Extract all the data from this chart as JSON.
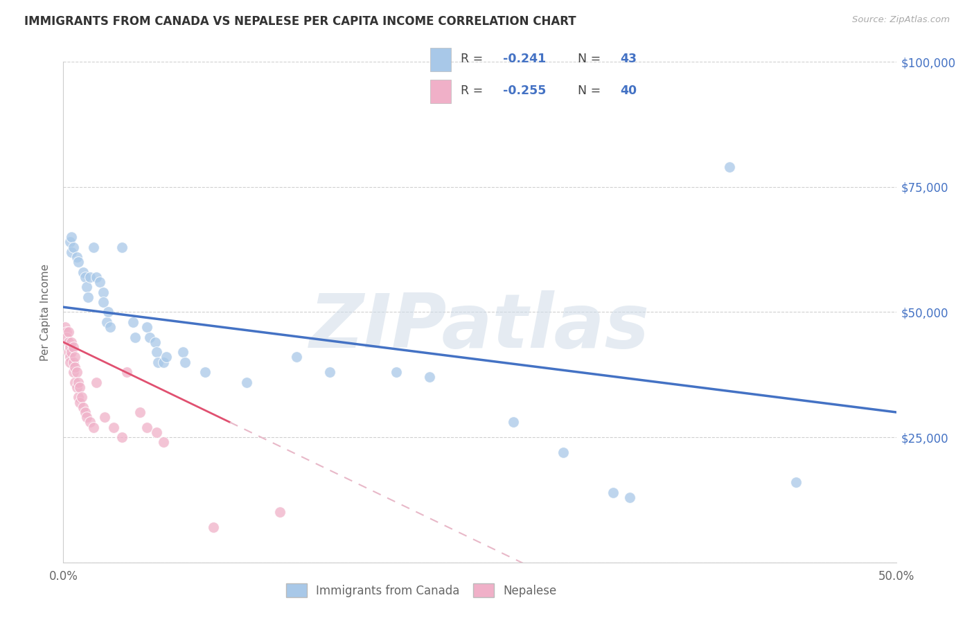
{
  "title": "IMMIGRANTS FROM CANADA VS NEPALESE PER CAPITA INCOME CORRELATION CHART",
  "source": "Source: ZipAtlas.com",
  "ylabel": "Per Capita Income",
  "xlim": [
    0.0,
    0.5
  ],
  "ylim": [
    0,
    100000
  ],
  "yticks": [
    0,
    25000,
    50000,
    75000,
    100000
  ],
  "ytick_labels": [
    "",
    "$25,000",
    "$50,000",
    "$75,000",
    "$100,000"
  ],
  "xticks": [
    0.0,
    0.1,
    0.2,
    0.3,
    0.4,
    0.5
  ],
  "xtick_labels": [
    "0.0%",
    "",
    "",
    "",
    "",
    "50.0%"
  ],
  "legend_r1": "-0.241",
  "legend_n1": "43",
  "legend_r2": "-0.255",
  "legend_n2": "40",
  "color_blue": "#a8c8e8",
  "color_pink": "#f0b0c8",
  "line_blue": "#4472c4",
  "line_pink": "#e05070",
  "line_pink_dashed": "#e8b8c8",
  "watermark": "ZIPatlas",
  "watermark_color": "#d0dce8",
  "blue_x": [
    0.004,
    0.005,
    0.005,
    0.006,
    0.008,
    0.009,
    0.012,
    0.013,
    0.014,
    0.015,
    0.016,
    0.018,
    0.02,
    0.022,
    0.024,
    0.024,
    0.026,
    0.027,
    0.028,
    0.035,
    0.042,
    0.043,
    0.05,
    0.052,
    0.055,
    0.056,
    0.057,
    0.06,
    0.062,
    0.072,
    0.073,
    0.085,
    0.11,
    0.14,
    0.16,
    0.2,
    0.22,
    0.27,
    0.3,
    0.33,
    0.34,
    0.4,
    0.44
  ],
  "blue_y": [
    64000,
    65000,
    62000,
    63000,
    61000,
    60000,
    58000,
    57000,
    55000,
    53000,
    57000,
    63000,
    57000,
    56000,
    54000,
    52000,
    48000,
    50000,
    47000,
    63000,
    48000,
    45000,
    47000,
    45000,
    44000,
    42000,
    40000,
    40000,
    41000,
    42000,
    40000,
    38000,
    36000,
    41000,
    38000,
    38000,
    37000,
    28000,
    22000,
    14000,
    13000,
    79000,
    16000
  ],
  "pink_x": [
    0.001,
    0.002,
    0.002,
    0.003,
    0.003,
    0.003,
    0.004,
    0.004,
    0.004,
    0.005,
    0.005,
    0.006,
    0.006,
    0.006,
    0.007,
    0.007,
    0.007,
    0.008,
    0.008,
    0.009,
    0.009,
    0.01,
    0.01,
    0.011,
    0.012,
    0.013,
    0.014,
    0.016,
    0.018,
    0.02,
    0.025,
    0.03,
    0.035,
    0.038,
    0.046,
    0.05,
    0.056,
    0.06,
    0.09,
    0.13
  ],
  "pink_y": [
    47000,
    46000,
    45000,
    46000,
    44000,
    42000,
    43000,
    41000,
    40000,
    44000,
    42000,
    43000,
    40000,
    38000,
    41000,
    39000,
    36000,
    38000,
    35000,
    36000,
    33000,
    35000,
    32000,
    33000,
    31000,
    30000,
    29000,
    28000,
    27000,
    36000,
    29000,
    27000,
    25000,
    38000,
    30000,
    27000,
    26000,
    24000,
    7000,
    10000
  ]
}
